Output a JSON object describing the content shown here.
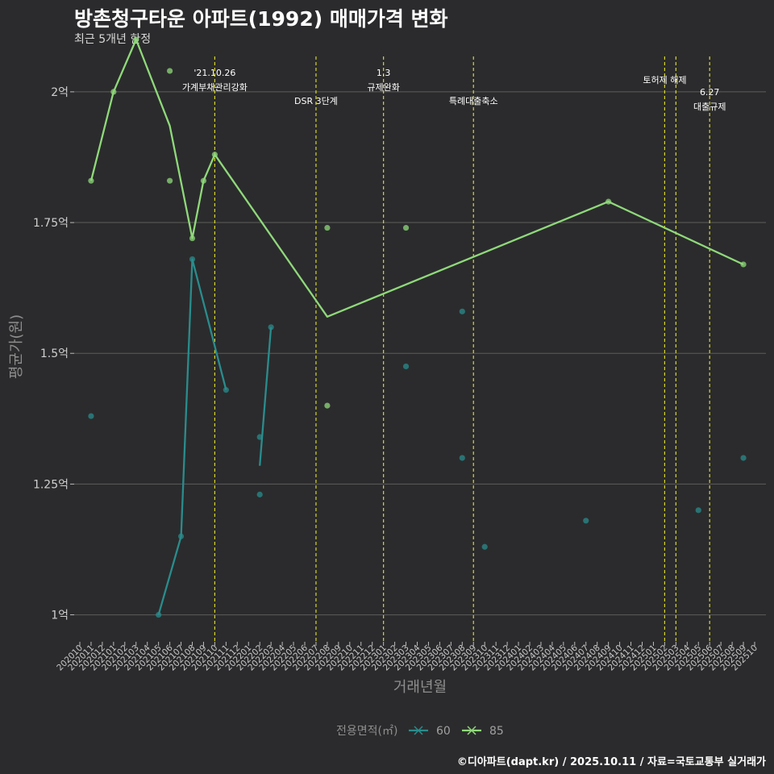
{
  "header": {
    "title": "방촌청구타운 아파트(1992) 매매가격 변화",
    "subtitle": "최근 5개년 한정",
    "caption": "©디아파트(dapt.kr) / 2025.10.11 / 자료=국토교통부 실거래가"
  },
  "chart_data": {
    "type": "line",
    "title": "방촌청구타운 아파트(1992) 매매가격 변화",
    "xlabel": "거래년월",
    "ylabel": "평균가(원)",
    "ylim": [
      0.95,
      2.08
    ],
    "y_ticks": [
      1.0,
      1.25,
      1.5,
      1.75,
      2.0
    ],
    "y_tick_labels": [
      "1억",
      "1.25억",
      "1.5억",
      "1.75억",
      "2억"
    ],
    "x_categories": [
      "202010",
      "202011",
      "202012",
      "202101",
      "202102",
      "202103",
      "202104",
      "202105",
      "202106",
      "202107",
      "202108",
      "202109",
      "202110",
      "202111",
      "202112",
      "202201",
      "202202",
      "202203",
      "202204",
      "202205",
      "202206",
      "202207",
      "202208",
      "202209",
      "202210",
      "202211",
      "202212",
      "202301",
      "202302",
      "202303",
      "202304",
      "202305",
      "202306",
      "202307",
      "202308",
      "202309",
      "202310",
      "202311",
      "202312",
      "202401",
      "202402",
      "202403",
      "202404",
      "202405",
      "202406",
      "202407",
      "202408",
      "202409",
      "202410",
      "202411",
      "202412",
      "202501",
      "202502",
      "202503",
      "202504",
      "202505",
      "202506",
      "202507",
      "202508",
      "202509",
      "202510"
    ],
    "events": [
      {
        "x": "202110",
        "label": [
          "'21.10.26",
          "가계부채관리강화"
        ]
      },
      {
        "x": "202207",
        "label": [
          "DSR 3단계"
        ]
      },
      {
        "x": "202301",
        "label": [
          "1.3",
          "규제완화"
        ]
      },
      {
        "x": "202309",
        "label": [
          "특례대출축소"
        ]
      },
      {
        "x": "202502",
        "label": [
          "토허제 해제"
        ]
      },
      {
        "x": "202503",
        "label": []
      },
      {
        "x": "202506",
        "label": [
          "6.27",
          "대출규제"
        ]
      }
    ],
    "legend": {
      "title": "전용면적(㎡)",
      "position": "bottom"
    },
    "series": [
      {
        "name": "60",
        "color": "#2a8c8c",
        "line": [
          {
            "x": "202105",
            "y": 1.0
          },
          {
            "x": "202107",
            "y": 1.15
          },
          {
            "x": "202108",
            "y": 1.68
          },
          {
            "x": "202111",
            "y": 1.43
          },
          {
            "x": "202202",
            "y": 1.285
          },
          {
            "x": "202203",
            "y": 1.55
          }
        ],
        "points": [
          {
            "x": "202011",
            "y": 1.38
          },
          {
            "x": "202105",
            "y": 1.0
          },
          {
            "x": "202107",
            "y": 1.15
          },
          {
            "x": "202108",
            "y": 1.68
          },
          {
            "x": "202111",
            "y": 1.43
          },
          {
            "x": "202202",
            "y": 1.34
          },
          {
            "x": "202202",
            "y": 1.23
          },
          {
            "x": "202203",
            "y": 1.55
          },
          {
            "x": "202303",
            "y": 1.475
          },
          {
            "x": "202308",
            "y": 1.58
          },
          {
            "x": "202308",
            "y": 1.3
          },
          {
            "x": "202310",
            "y": 1.13
          },
          {
            "x": "202407",
            "y": 1.18
          },
          {
            "x": "202505",
            "y": 1.2
          },
          {
            "x": "202509",
            "y": 1.3
          }
        ]
      },
      {
        "name": "85",
        "color": "#8fd97a",
        "line": [
          {
            "x": "202011",
            "y": 1.83
          },
          {
            "x": "202101",
            "y": 2.0
          },
          {
            "x": "202103",
            "y": 2.1
          },
          {
            "x": "202106",
            "y": 1.935
          },
          {
            "x": "202108",
            "y": 1.72
          },
          {
            "x": "202109",
            "y": 1.83
          },
          {
            "x": "202110",
            "y": 1.88
          },
          {
            "x": "202208",
            "y": 1.57
          },
          {
            "x": "202409",
            "y": 1.79
          },
          {
            "x": "202509",
            "y": 1.67
          }
        ],
        "points": [
          {
            "x": "202011",
            "y": 1.83
          },
          {
            "x": "202101",
            "y": 2.0
          },
          {
            "x": "202103",
            "y": 2.1
          },
          {
            "x": "202106",
            "y": 2.04
          },
          {
            "x": "202106",
            "y": 1.83
          },
          {
            "x": "202108",
            "y": 1.72
          },
          {
            "x": "202109",
            "y": 1.83
          },
          {
            "x": "202110",
            "y": 1.88
          },
          {
            "x": "202208",
            "y": 1.74
          },
          {
            "x": "202208",
            "y": 1.4
          },
          {
            "x": "202303",
            "y": 1.74
          },
          {
            "x": "202409",
            "y": 1.79
          },
          {
            "x": "202509",
            "y": 1.67
          }
        ]
      }
    ]
  }
}
